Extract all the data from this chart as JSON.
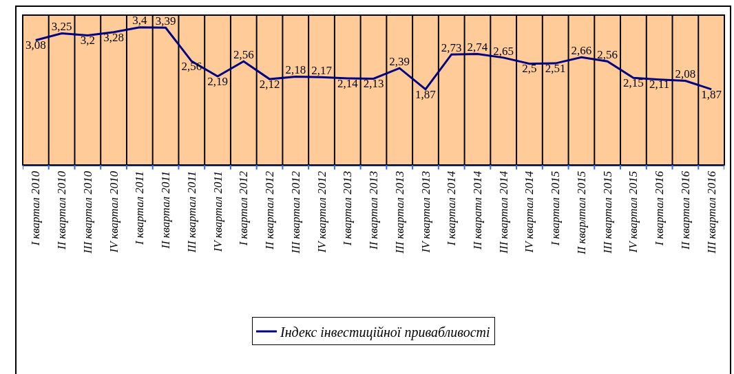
{
  "chart_data": {
    "type": "line",
    "categories": [
      "I квартал 2010",
      "II квартал 2010",
      "III квартал 2010",
      "IV квартал 2010",
      "I квартал 2011",
      "II квартал 2011",
      "III квартал 2011",
      "IV квартал 2011",
      "I квартал 2012",
      "II квартал 2012",
      "III квартал 2012",
      "IV квартал 2012",
      "I квартал 2013",
      "II квартал 2013",
      "III квартал 2013",
      "IV квартал 2013",
      "I квартал 2014",
      "II кваратл 2014",
      "III квартал 2014",
      "IV квартал 2014",
      "I квартал 2015",
      "II кварлтал 2015",
      "III квартал 2015",
      "IV квартал 2015",
      "I квартал 2016",
      "II квартал 2016",
      "III квартал 2016"
    ],
    "series": [
      {
        "name": "Індекс інвестиційної привабливості",
        "color": "#000080",
        "values": [
          3.08,
          3.25,
          3.2,
          3.28,
          3.4,
          3.39,
          2.56,
          2.19,
          2.56,
          2.12,
          2.18,
          2.17,
          2.14,
          2.13,
          2.39,
          1.87,
          2.73,
          2.74,
          2.65,
          2.5,
          2.51,
          2.66,
          2.56,
          2.15,
          2.11,
          2.08,
          1.87
        ],
        "value_labels": [
          "3,08",
          "3,25",
          "3,2",
          "3,28",
          "3,4",
          "3,39",
          "2,56",
          "2,19",
          "2,56",
          "2,12",
          "2,18",
          "2,17",
          "2,14",
          "2,13",
          "2,39",
          "1,87",
          "2,73",
          "2,74",
          "2,65",
          "2,5",
          "2,51",
          "2,66",
          "2,56",
          "2,15",
          "2,11",
          "2,08",
          "1,87"
        ]
      }
    ],
    "ylim": [
      0,
      3.7
    ],
    "tick_labels": "x",
    "grid": "x",
    "legend": "bottom",
    "marker": "none",
    "line_style": "solid"
  }
}
